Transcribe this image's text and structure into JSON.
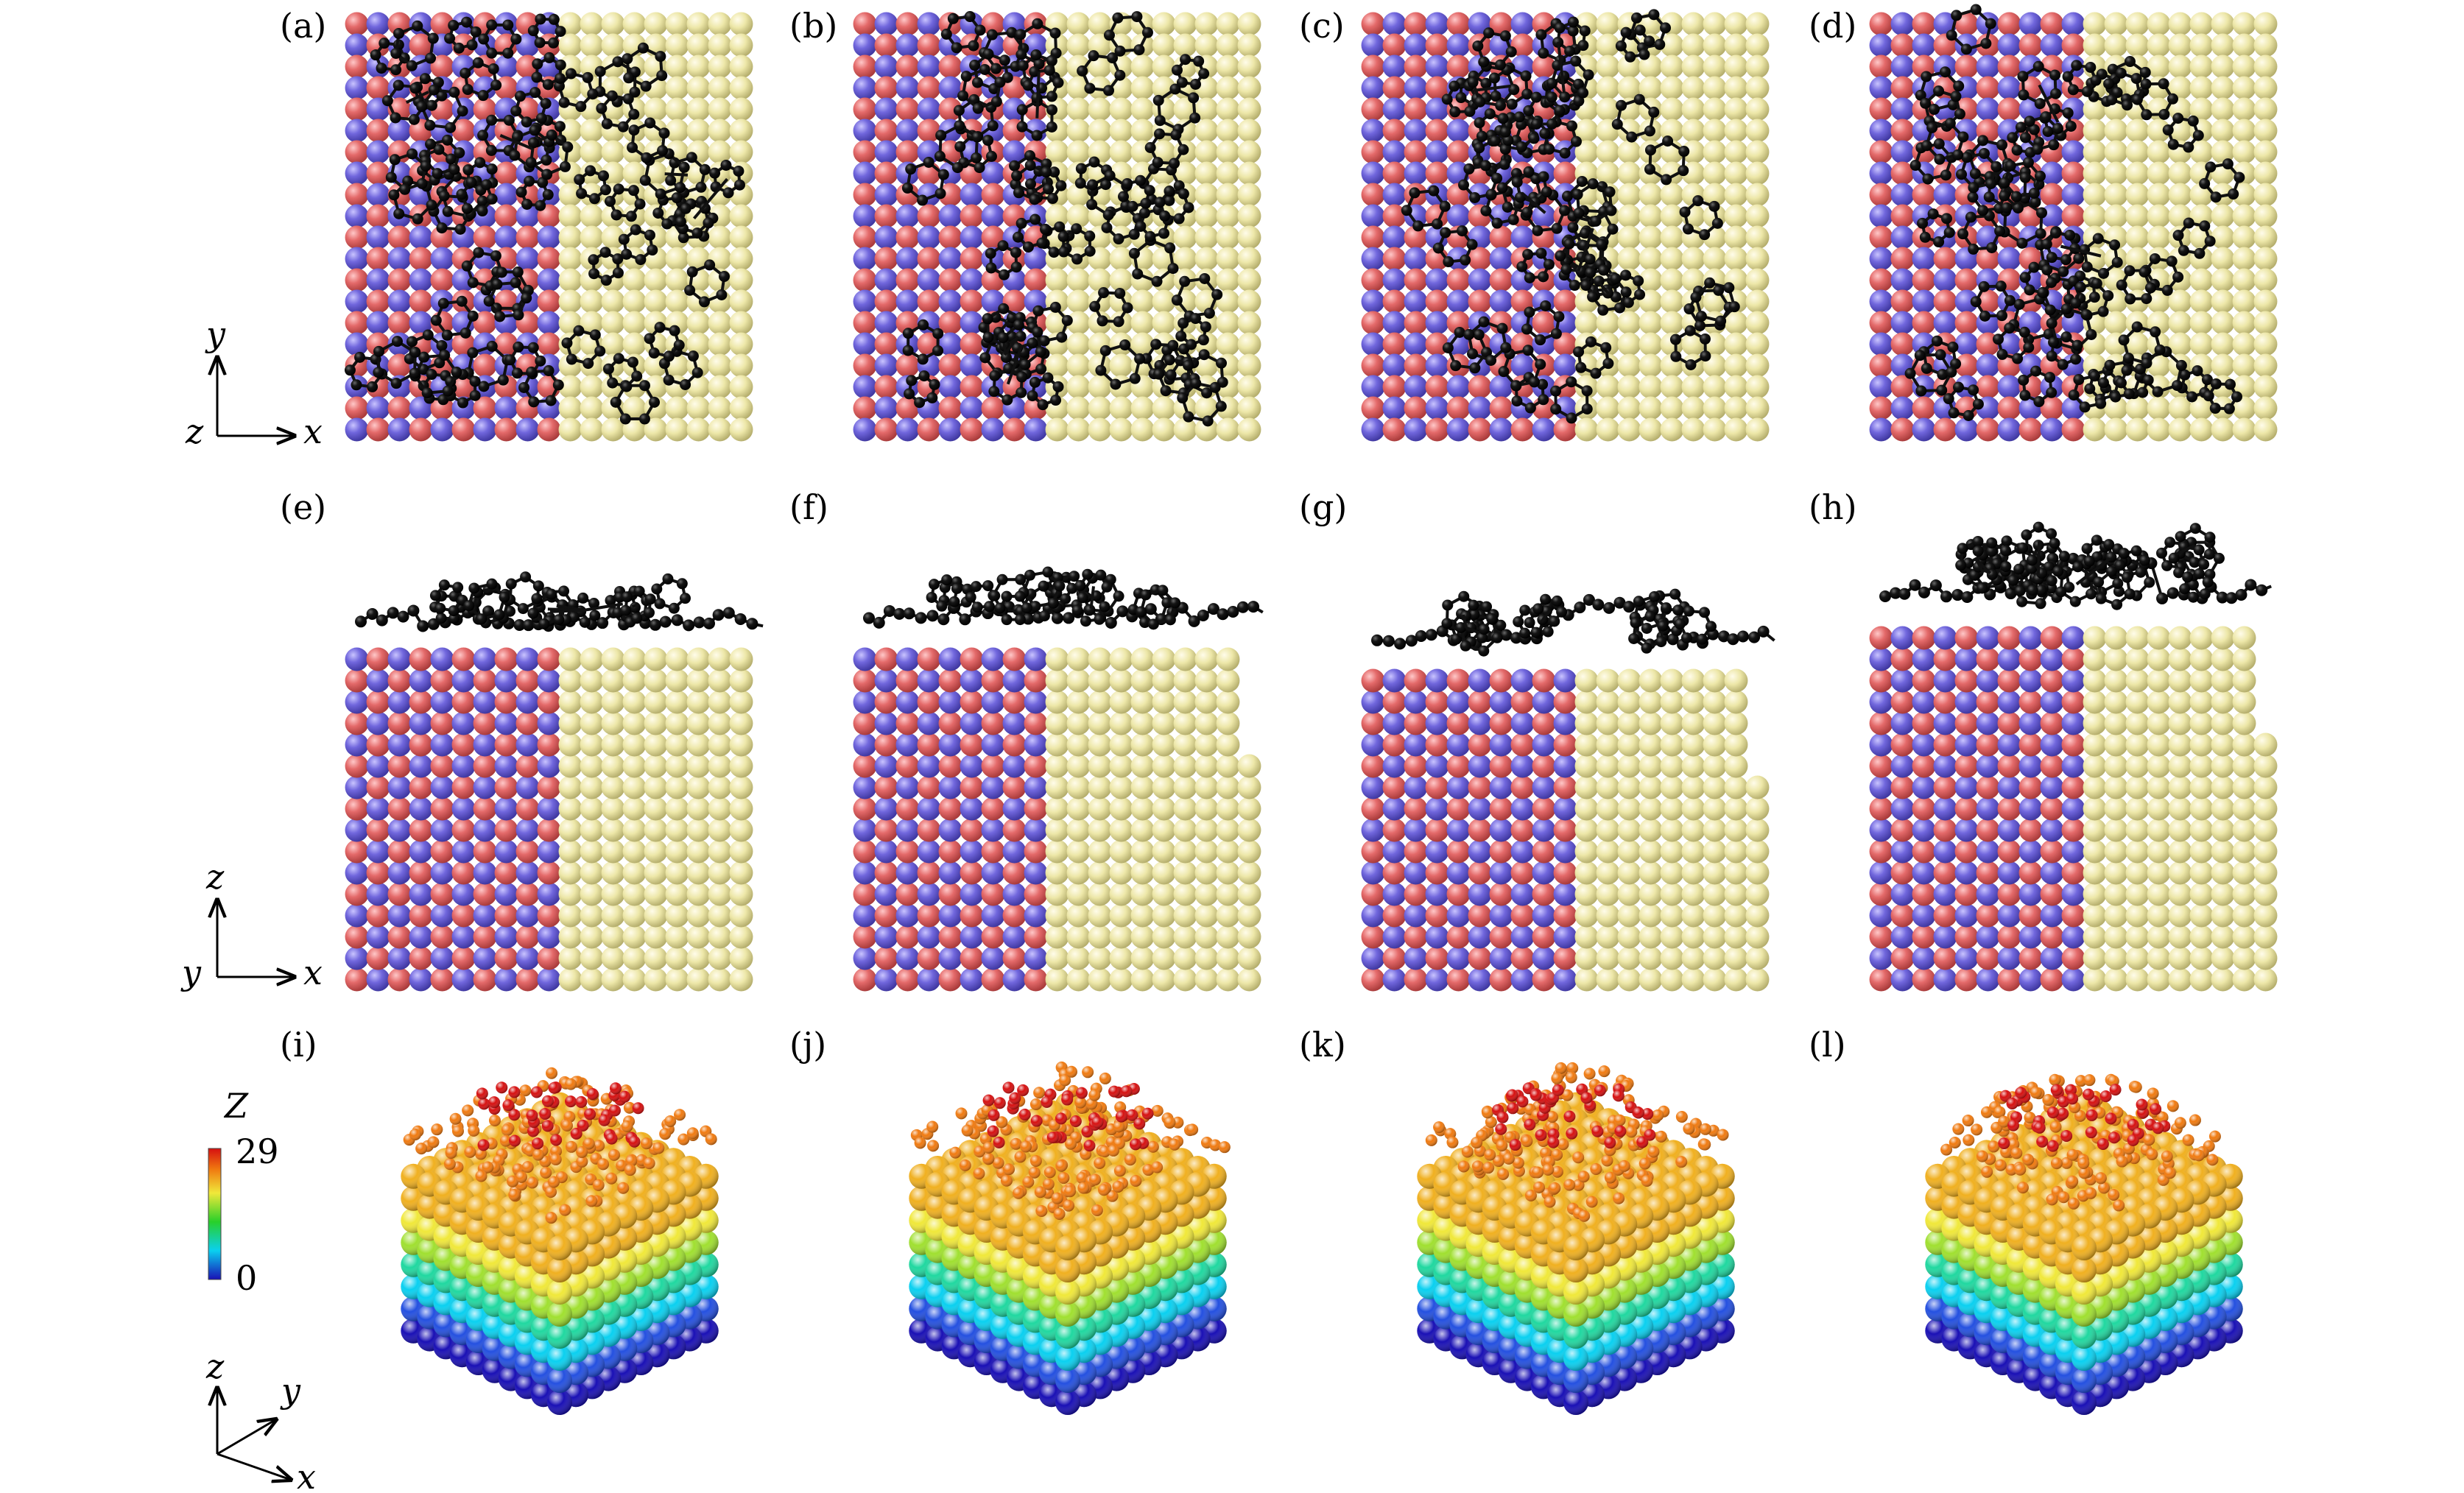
{
  "panels": [
    {
      "id": "a",
      "label": "(a)",
      "view": "top",
      "stage": 0
    },
    {
      "id": "b",
      "label": "(b)",
      "view": "top",
      "stage": 1
    },
    {
      "id": "c",
      "label": "(c)",
      "view": "top",
      "stage": 2
    },
    {
      "id": "d",
      "label": "(d)",
      "view": "top",
      "stage": 3
    },
    {
      "id": "e",
      "label": "(e)",
      "view": "side",
      "stage": 0
    },
    {
      "id": "f",
      "label": "(f)",
      "view": "side",
      "stage": 1
    },
    {
      "id": "g",
      "label": "(g)",
      "view": "side",
      "stage": 2
    },
    {
      "id": "h",
      "label": "(h)",
      "view": "side",
      "stage": 3
    },
    {
      "id": "i",
      "label": "(i)",
      "view": "iso",
      "stage": 0
    },
    {
      "id": "j",
      "label": "(j)",
      "view": "iso",
      "stage": 1
    },
    {
      "id": "k",
      "label": "(k)",
      "view": "iso",
      "stage": 2
    },
    {
      "id": "l",
      "label": "(l)",
      "view": "iso",
      "stage": 3
    }
  ],
  "axes": {
    "top": {
      "horizontal": "x",
      "vertical": "y",
      "out_of_plane": "z"
    },
    "side": {
      "horizontal": "x",
      "vertical": "z",
      "out_of_plane": "y"
    },
    "iso": {
      "up": "z",
      "depth": "y",
      "right": "x"
    }
  },
  "colorbar": {
    "title": "Z",
    "max_label": "29",
    "min_label": "0",
    "colors": [
      "#1a10b5",
      "#0ad0f0",
      "#28d02a",
      "#f0e83a",
      "#f07a10",
      "#d61010"
    ]
  },
  "colors": {
    "red_atom": "#e46a6a",
    "blue_atom": "#7167dd",
    "yellow_atom": "#ede7a8",
    "carbon": "#0b0b0b"
  }
}
